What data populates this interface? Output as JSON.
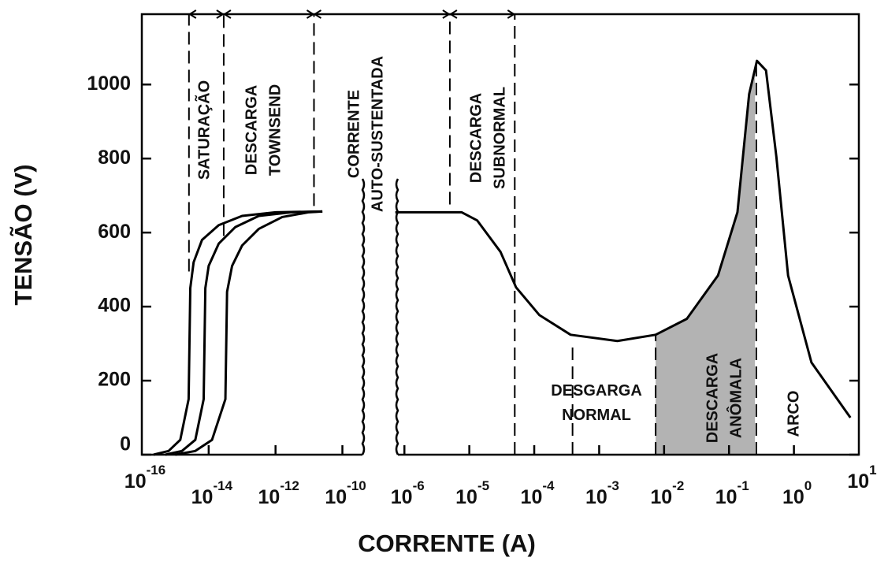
{
  "chart_data": {
    "type": "line",
    "xlabel": "CORRENTE (A)",
    "ylabel": "TENSÃO (V)",
    "x_tick_base": "10",
    "x_segments": [
      [
        -16,
        -9.4
      ],
      [
        -6.1,
        1
      ]
    ],
    "xticks": [
      -16,
      -14,
      -12,
      -10,
      -6,
      -5,
      -4,
      -3,
      -2,
      -1,
      0,
      1
    ],
    "ylim": [
      0,
      1190
    ],
    "yticks": [
      0,
      200,
      400,
      600,
      800,
      1000
    ],
    "color": "#000000",
    "shade_color": "#b3b3b3",
    "series": [
      {
        "x": [
          -15.65,
          -15.2,
          -14.85,
          -14.6,
          -14.55,
          -14.45,
          -14.2,
          -13.7,
          -13,
          -12,
          -10.6
        ],
        "values": [
          0,
          10,
          40,
          150,
          450,
          520,
          580,
          620,
          645,
          655,
          657
        ]
      },
      {
        "x": [
          -15.3,
          -14.8,
          -14.4,
          -14.15,
          -14.1,
          -14.0,
          -13.7,
          -13.2,
          -12.5,
          -11.5,
          -10.6
        ],
        "values": [
          0,
          10,
          40,
          150,
          450,
          510,
          570,
          615,
          645,
          655,
          657
        ]
      },
      {
        "x": [
          -15.0,
          -14.4,
          -13.9,
          -13.5,
          -13.45,
          -13.3,
          -13.0,
          -12.5,
          -11.8,
          -11,
          -10.6
        ],
        "values": [
          0,
          10,
          40,
          150,
          440,
          510,
          565,
          610,
          642,
          655,
          657
        ]
      },
      {
        "x": [
          -6.14,
          -5.12,
          -4.88,
          -4.52,
          -4.28,
          -3.92,
          -3.44,
          -2.72,
          -2.13,
          -1.65,
          -1.17,
          -0.87,
          -0.69,
          -0.57,
          -0.43,
          -0.27,
          -0.09,
          0.27,
          0.87
        ],
        "values": [
          655,
          655,
          633,
          548,
          452,
          377,
          324,
          307,
          324,
          367,
          484,
          655,
          974,
          1064,
          1038,
          804,
          484,
          249,
          100
        ]
      }
    ],
    "shaded_range": [
      -2.13,
      -0.6
    ],
    "dividers": [
      {
        "x": -14.59,
        "y": [
          495,
          1190
        ]
      },
      {
        "x": -13.55,
        "y": [
          591,
          1190
        ]
      },
      {
        "x": -10.85,
        "y": [
          672,
          1190
        ]
      },
      {
        "x": -5.3,
        "y": [
          676,
          1190
        ]
      },
      {
        "x": -4.3,
        "y": [
          0,
          1190
        ]
      },
      {
        "x": -3.41,
        "y": [
          0,
          292
        ]
      },
      {
        "x": -2.13,
        "y": [
          0,
          324
        ]
      },
      {
        "x": -0.58,
        "y": [
          0,
          1070
        ]
      }
    ],
    "annotations": [
      {
        "lines": [
          "SATURAÇÃO"
        ]
      },
      {
        "lines": [
          "DESCARGA",
          "TOWNSEND"
        ]
      },
      {
        "lines": [
          "CORRENTE",
          "AUTO-SUSTENTADA"
        ]
      },
      {
        "lines": [
          "DESCARGA",
          "SUBNORMAL"
        ]
      },
      {
        "lines": [
          "DESGARGA",
          "NORMAL"
        ]
      },
      {
        "lines": [
          "DESCARGA",
          "ANÔMALA"
        ]
      },
      {
        "lines": [
          "ARCO"
        ]
      }
    ]
  }
}
